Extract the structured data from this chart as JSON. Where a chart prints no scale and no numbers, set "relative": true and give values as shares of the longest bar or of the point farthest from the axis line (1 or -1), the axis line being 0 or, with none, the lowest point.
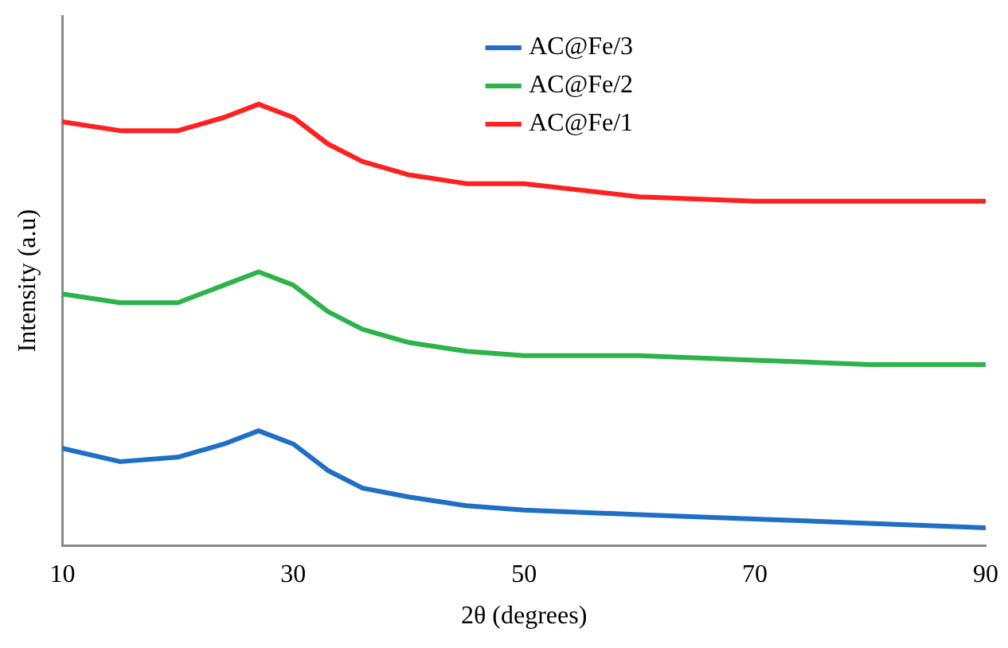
{
  "chart_data": {
    "type": "line",
    "relative": true,
    "xlabel": "2θ (degrees)",
    "ylabel": "Intensity (a.u)",
    "xlim": [
      10,
      90
    ],
    "xticks": [
      10,
      30,
      50,
      70,
      90
    ],
    "legend": "top right",
    "marker": "none",
    "line_style": "solid",
    "tick_labels": "x",
    "x": [
      10,
      15,
      20,
      24,
      27,
      30,
      33,
      36,
      40,
      45,
      50,
      60,
      70,
      80,
      90
    ],
    "series": [
      {
        "name": "AC@Fe/3",
        "color": "#1f6fc5",
        "values": [
          0.22,
          0.19,
          0.2,
          0.23,
          0.26,
          0.23,
          0.17,
          0.13,
          0.11,
          0.09,
          0.08,
          0.07,
          0.06,
          0.05,
          0.04
        ]
      },
      {
        "name": "AC@Fe/2",
        "color": "#2db34a",
        "values": [
          0.57,
          0.55,
          0.55,
          0.59,
          0.62,
          0.59,
          0.53,
          0.49,
          0.46,
          0.44,
          0.43,
          0.43,
          0.42,
          0.41,
          0.41
        ]
      },
      {
        "name": "AC@Fe/1",
        "color": "#ff2020",
        "values": [
          0.96,
          0.94,
          0.94,
          0.97,
          1.0,
          0.97,
          0.91,
          0.87,
          0.84,
          0.82,
          0.82,
          0.79,
          0.78,
          0.78,
          0.78
        ]
      }
    ]
  }
}
